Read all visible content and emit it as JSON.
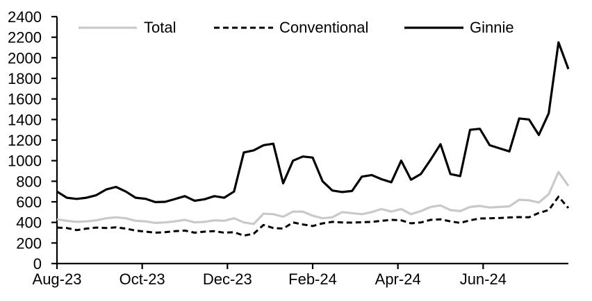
{
  "chart_data": {
    "type": "line",
    "title": "",
    "x_axis": {
      "tick_labels": [
        "Aug-23",
        "Oct-23",
        "Dec-23",
        "Feb-24",
        "Apr-24",
        "Jun-24"
      ],
      "frequency": "weekly",
      "range_start": "Aug-23",
      "range_end": "Aug-24"
    },
    "y_axis": {
      "min": 0,
      "max": 2400,
      "step": 200,
      "tick_labels": [
        "0",
        "200",
        "400",
        "600",
        "800",
        "1000",
        "1200",
        "1400",
        "1600",
        "1800",
        "2000",
        "2200",
        "2400"
      ]
    },
    "legend_position": "top",
    "grid": "off",
    "colors": {
      "total_line": "#c9c9c9",
      "conventional_line": "#000000",
      "ginnie_line": "#000000",
      "axis": "#000000",
      "background": "#ffffff"
    },
    "series": [
      {
        "name": "Total",
        "style": "solid",
        "color": "#c9c9c9",
        "values": [
          430,
          415,
          405,
          410,
          420,
          440,
          450,
          440,
          415,
          410,
          395,
          400,
          410,
          425,
          400,
          405,
          420,
          415,
          440,
          400,
          385,
          485,
          480,
          455,
          505,
          505,
          465,
          440,
          450,
          500,
          490,
          480,
          500,
          530,
          505,
          530,
          480,
          510,
          550,
          565,
          520,
          510,
          550,
          560,
          545,
          550,
          556,
          620,
          615,
          594,
          674,
          890,
          755
        ]
      },
      {
        "name": "Conventional",
        "style": "dashed",
        "color": "#000000",
        "values": [
          350,
          345,
          325,
          340,
          350,
          345,
          352,
          340,
          320,
          310,
          300,
          305,
          315,
          320,
          300,
          310,
          315,
          300,
          305,
          272,
          290,
          375,
          345,
          340,
          400,
          380,
          365,
          390,
          405,
          400,
          398,
          402,
          405,
          415,
          425,
          420,
          391,
          400,
          425,
          430,
          410,
          395,
          420,
          438,
          440,
          442,
          448,
          452,
          450,
          492,
          520,
          650,
          540
        ]
      },
      {
        "name": "Ginnie",
        "style": "solid",
        "color": "#000000",
        "values": [
          700,
          640,
          628,
          640,
          665,
          720,
          745,
          700,
          640,
          630,
          597,
          600,
          627,
          655,
          610,
          625,
          655,
          640,
          700,
          1080,
          1100,
          1150,
          1165,
          780,
          1000,
          1040,
          1030,
          800,
          710,
          695,
          705,
          845,
          860,
          820,
          790,
          1000,
          815,
          870,
          1010,
          1160,
          870,
          850,
          1300,
          1310,
          1150,
          1120,
          1090,
          1410,
          1400,
          1250,
          1460,
          2150,
          1890
        ]
      }
    ]
  }
}
